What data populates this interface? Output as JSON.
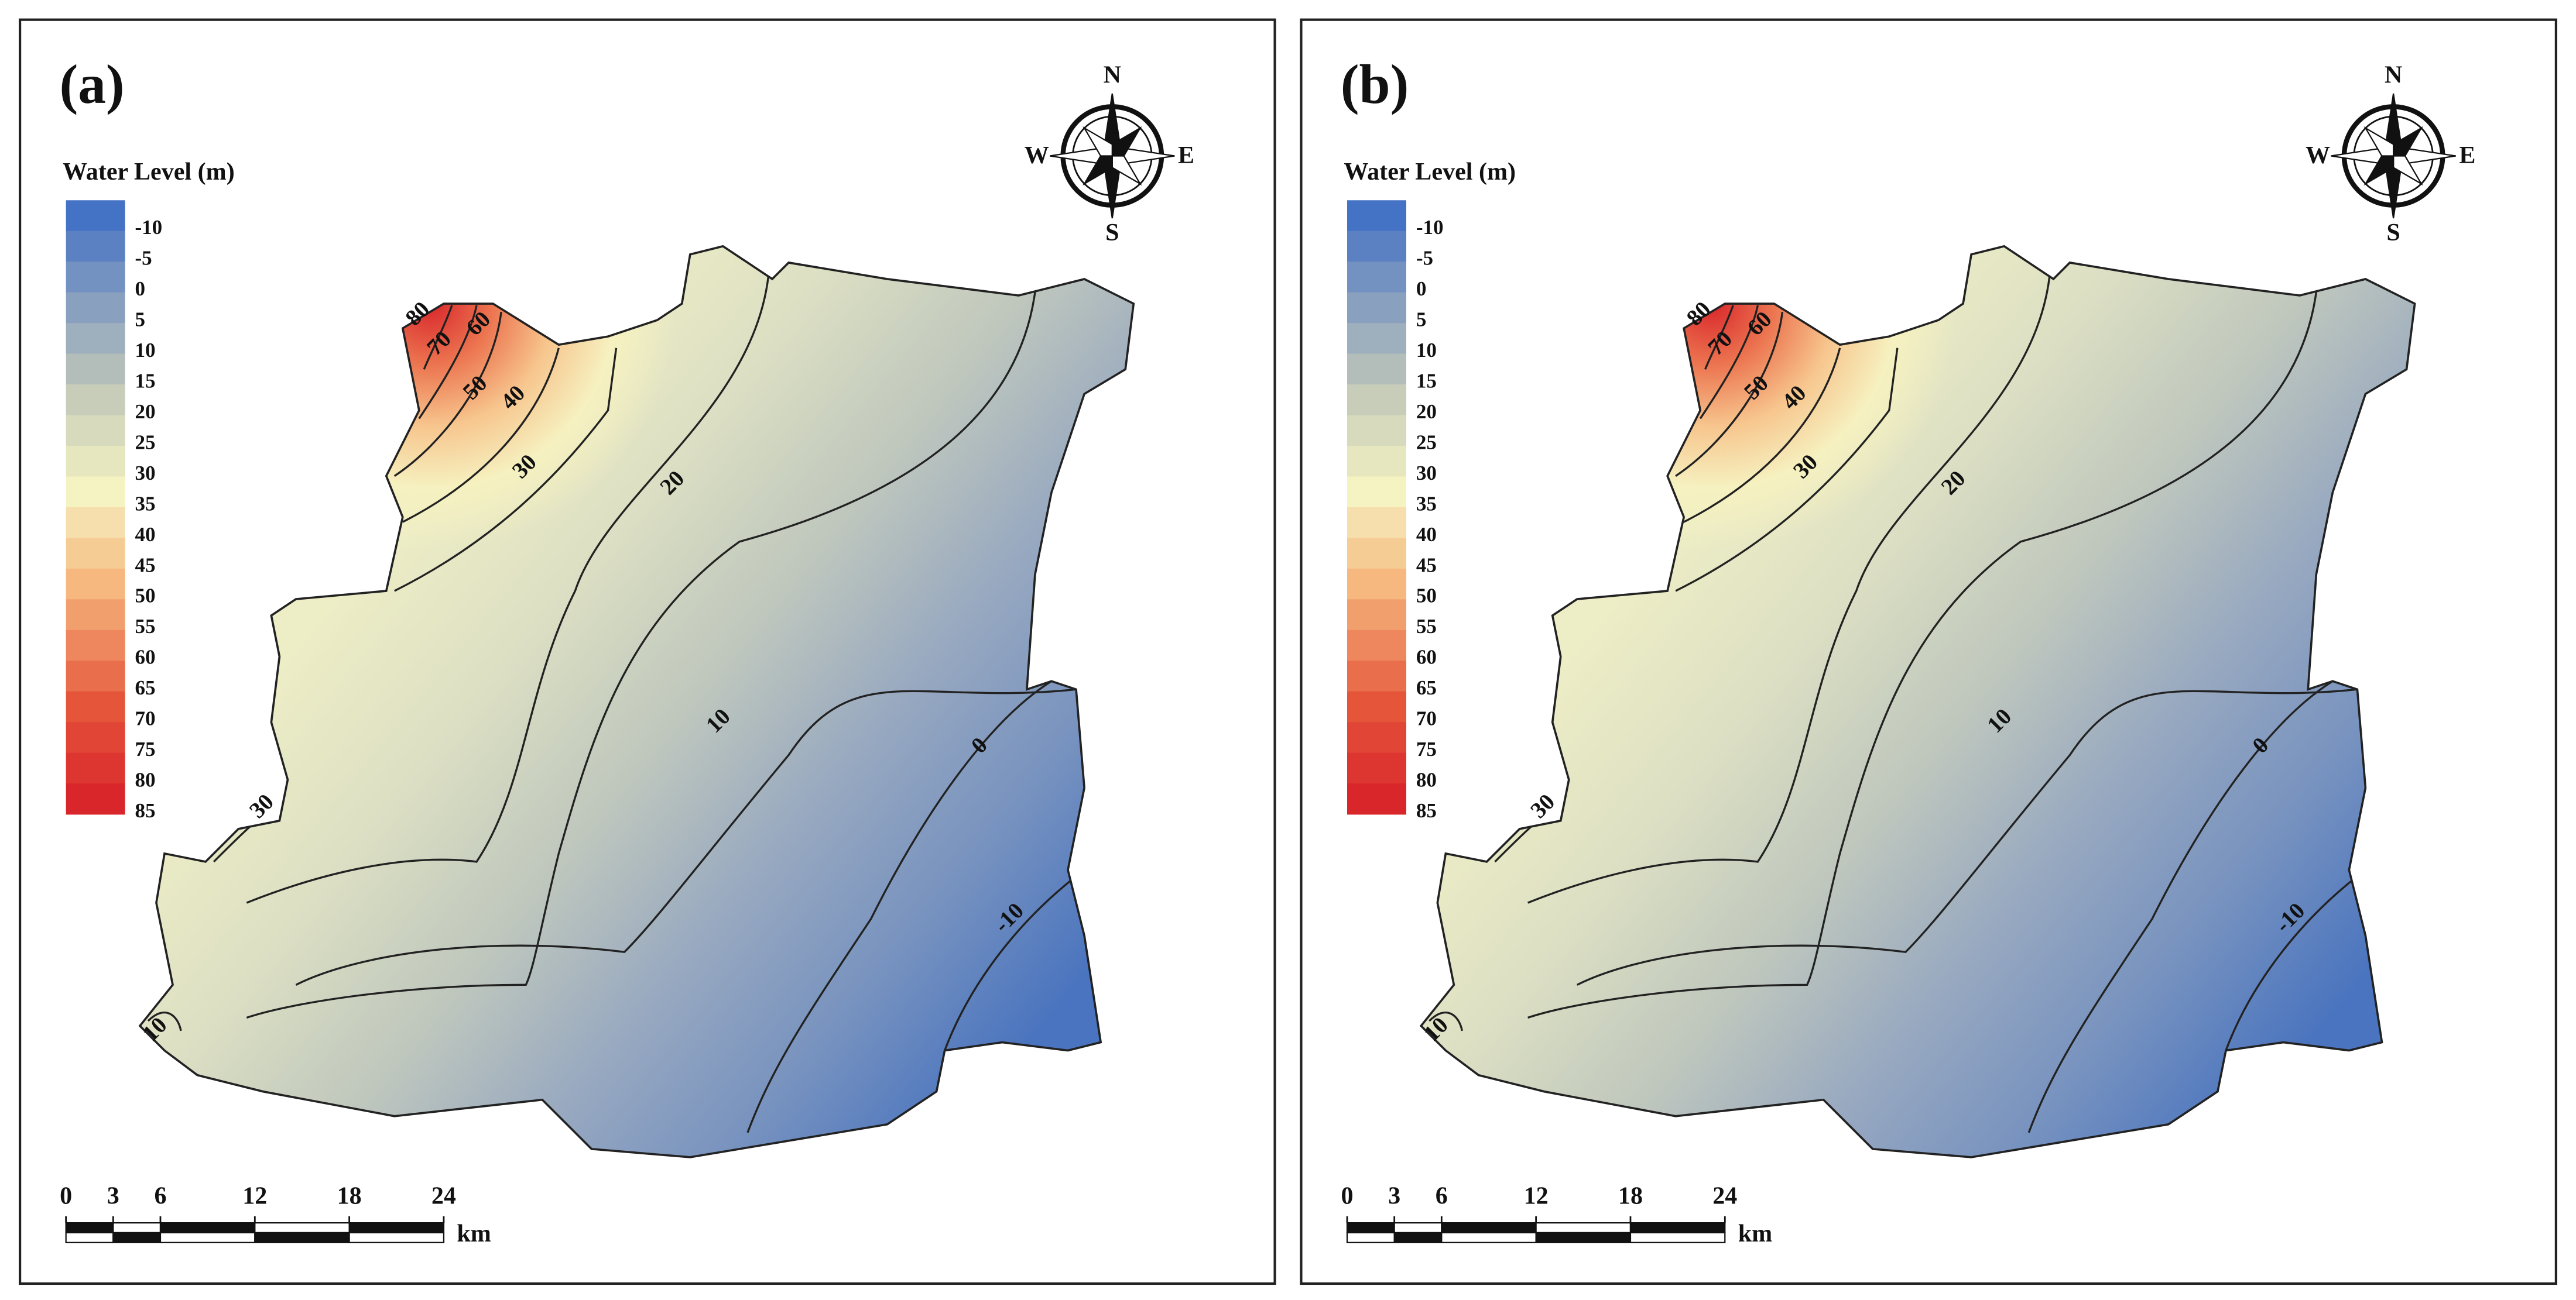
{
  "panels": [
    {
      "label": "(a)",
      "legend_title": "Water Level (m)",
      "legend_levels": [
        -10,
        -5,
        0,
        5,
        10,
        15,
        20,
        25,
        30,
        35,
        40,
        45,
        50,
        55,
        60,
        65,
        70,
        75,
        80,
        85
      ],
      "contour_labels": [
        80,
        70,
        60,
        50,
        40,
        30,
        20,
        10,
        0,
        -10,
        30,
        10
      ],
      "compass": {
        "north": "N",
        "east": "E",
        "south": "S",
        "west": "W"
      },
      "scale_ticks": [
        0,
        3,
        6,
        12,
        18,
        24
      ],
      "scale_unit": "km"
    },
    {
      "label": "(b)",
      "legend_title": "Water Level (m)",
      "legend_levels": [
        -10,
        -5,
        0,
        5,
        10,
        15,
        20,
        25,
        30,
        35,
        40,
        45,
        50,
        55,
        60,
        65,
        70,
        75,
        80,
        85
      ],
      "contour_labels": [
        80,
        70,
        60,
        50,
        40,
        30,
        20,
        10,
        0,
        -10,
        30,
        10
      ],
      "compass": {
        "north": "N",
        "east": "E",
        "south": "S",
        "west": "W"
      },
      "scale_ticks": [
        0,
        3,
        6,
        12,
        18,
        24
      ],
      "scale_unit": "km"
    }
  ]
}
